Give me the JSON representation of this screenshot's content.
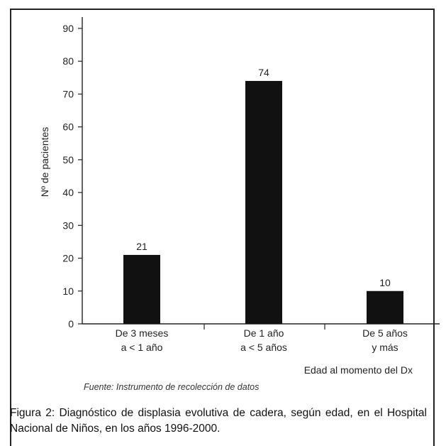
{
  "chart_data": {
    "type": "bar",
    "categories": [
      [
        "De 3 meses",
        "a < 1 año"
      ],
      [
        "De 1 año",
        "a < 5 años"
      ],
      [
        "De 5 años",
        "y más"
      ]
    ],
    "values": [
      21,
      74,
      10
    ],
    "data_labels": [
      "21",
      "74",
      "10"
    ],
    "ylabel": "Nº de pacientes",
    "xlabel": "Edad al momento del Dx",
    "ylim": [
      0,
      90
    ],
    "yticks": [
      0,
      10,
      20,
      30,
      40,
      50,
      60,
      70,
      80,
      90
    ],
    "grid": false,
    "bar_color": "#111111"
  },
  "source_note": "Fuente: Instrumento de recolección de datos",
  "caption": "Figura 2: Diagnóstico de displasia evolutiva de cadera, según edad, en el Hospital Nacional de Niños, en los años 1996-2000."
}
